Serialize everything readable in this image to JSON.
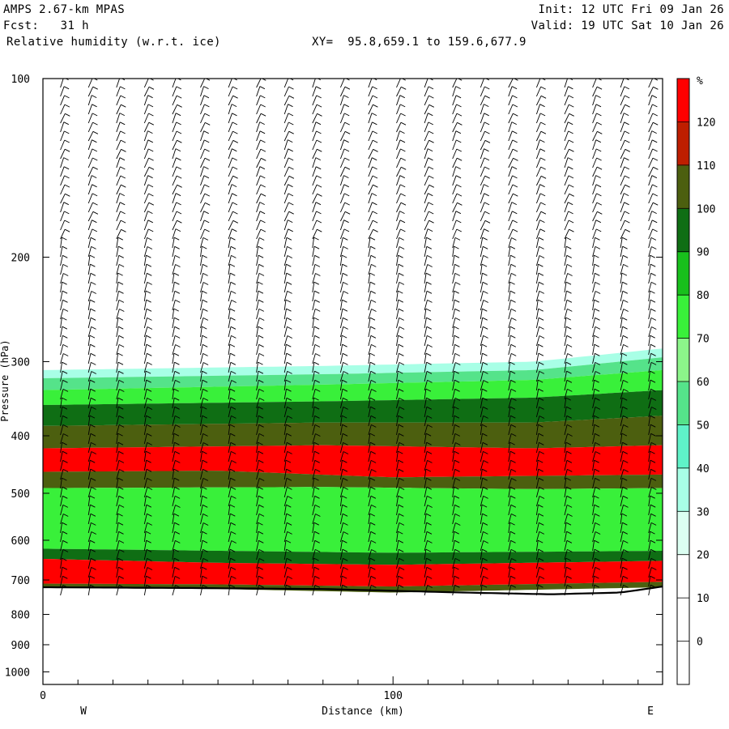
{
  "header": {
    "model": "AMPS 2.67-km MPAS",
    "init": "Init: 12 UTC Fri 09 Jan 26",
    "fcst": "Fcst:   31 h",
    "valid": "Valid: 19 UTC Sat 10 Jan 26",
    "field": "Relative humidity (w.r.t. ice)",
    "xy": "XY=  95.8,659.1 to 159.6,677.9"
  },
  "chart_data": {
    "type": "heatmap",
    "title": "Relative humidity (w.r.t. ice)",
    "xlabel": "Distance (km)",
    "ylabel": "Pressure (hPa)",
    "xlim": [
      0,
      177
    ],
    "ylim": [
      100,
      1050
    ],
    "y_scale": "log",
    "x_ticks": [
      0,
      100
    ],
    "y_ticks": [
      100,
      200,
      300,
      400,
      500,
      600,
      700,
      800,
      900,
      1000
    ],
    "end_labels": {
      "west": "W",
      "east": "E"
    },
    "colorbar": {
      "unit": "%",
      "levels": [
        0,
        10,
        20,
        30,
        40,
        50,
        60,
        70,
        80,
        90,
        100,
        110,
        120
      ],
      "colors": [
        "#ffffff",
        "#ffffff",
        "#ffffff",
        "#dcfff2",
        "#a8ffe6",
        "#5ff2c8",
        "#55e38a",
        "#8cf58a",
        "#39f03a",
        "#18c01c",
        "#0f6e14",
        "#4c5f0f",
        "#be1e00",
        "#ff0000"
      ]
    },
    "terrain_pressure": [
      {
        "x": 0,
        "p": 720
      },
      {
        "x": 40,
        "p": 722
      },
      {
        "x": 80,
        "p": 725
      },
      {
        "x": 120,
        "p": 735
      },
      {
        "x": 145,
        "p": 740
      },
      {
        "x": 165,
        "p": 735
      },
      {
        "x": 177,
        "p": 718
      }
    ],
    "rh_layers": [
      {
        "top": [
          [
            0,
            310
          ],
          [
            80,
            305
          ],
          [
            140,
            300
          ],
          [
            177,
            285
          ]
        ],
        "bottom": [
          [
            0,
            320
          ],
          [
            80,
            315
          ],
          [
            140,
            310
          ],
          [
            177,
            295
          ]
        ],
        "rh": 35
      },
      {
        "top": [
          [
            0,
            320
          ],
          [
            80,
            315
          ],
          [
            140,
            310
          ],
          [
            177,
            295
          ]
        ],
        "bottom": [
          [
            0,
            335
          ],
          [
            80,
            328
          ],
          [
            140,
            322
          ],
          [
            177,
            310
          ]
        ],
        "rh": 55
      },
      {
        "top": [
          [
            0,
            335
          ],
          [
            80,
            328
          ],
          [
            140,
            322
          ],
          [
            177,
            310
          ]
        ],
        "bottom": [
          [
            0,
            355
          ],
          [
            80,
            350
          ],
          [
            140,
            345
          ],
          [
            177,
            335
          ]
        ],
        "rh": 75
      },
      {
        "top": [
          [
            0,
            355
          ],
          [
            80,
            350
          ],
          [
            140,
            345
          ],
          [
            177,
            335
          ]
        ],
        "bottom": [
          [
            0,
            385
          ],
          [
            80,
            380
          ],
          [
            140,
            380
          ],
          [
            177,
            370
          ]
        ],
        "rh": 90
      },
      {
        "top": [
          [
            0,
            385
          ],
          [
            80,
            380
          ],
          [
            140,
            380
          ],
          [
            177,
            370
          ]
        ],
        "bottom": [
          [
            0,
            420
          ],
          [
            80,
            415
          ],
          [
            140,
            420
          ],
          [
            177,
            415
          ]
        ],
        "rh": 105
      },
      {
        "top": [
          [
            0,
            420
          ],
          [
            80,
            415
          ],
          [
            140,
            420
          ],
          [
            177,
            415
          ]
        ],
        "bottom": [
          [
            0,
            460
          ],
          [
            50,
            458
          ],
          [
            100,
            470
          ],
          [
            177,
            465
          ]
        ],
        "rh": 120
      },
      {
        "top": [
          [
            0,
            460
          ],
          [
            50,
            458
          ],
          [
            100,
            470
          ],
          [
            177,
            465
          ]
        ],
        "bottom": [
          [
            0,
            490
          ],
          [
            80,
            488
          ],
          [
            140,
            492
          ],
          [
            177,
            490
          ]
        ],
        "rh": 105
      },
      {
        "top": [
          [
            0,
            490
          ],
          [
            80,
            488
          ],
          [
            140,
            492
          ],
          [
            177,
            490
          ]
        ],
        "bottom": [
          [
            0,
            620
          ],
          [
            50,
            625
          ],
          [
            100,
            630
          ],
          [
            177,
            625
          ]
        ],
        "rh": 75
      },
      {
        "top": [
          [
            0,
            620
          ],
          [
            50,
            625
          ],
          [
            100,
            630
          ],
          [
            177,
            625
          ]
        ],
        "bottom": [
          [
            0,
            645
          ],
          [
            50,
            655
          ],
          [
            100,
            660
          ],
          [
            177,
            650
          ]
        ],
        "rh": 95
      },
      {
        "top": [
          [
            0,
            645
          ],
          [
            50,
            655
          ],
          [
            100,
            660
          ],
          [
            177,
            650
          ]
        ],
        "bottom": [
          [
            0,
            710
          ],
          [
            50,
            712
          ],
          [
            100,
            718
          ],
          [
            177,
            705
          ]
        ],
        "rh": 125
      },
      {
        "top": [
          [
            0,
            710
          ],
          [
            50,
            712
          ],
          [
            100,
            718
          ],
          [
            177,
            705
          ]
        ],
        "bottom": [
          [
            0,
            722
          ],
          [
            50,
            725
          ],
          [
            100,
            735
          ],
          [
            177,
            720
          ]
        ],
        "rh": 105
      }
    ],
    "wind_columns_x": [
      5,
      13,
      21,
      29,
      37,
      45,
      53,
      61,
      69,
      77,
      85,
      93,
      101,
      109,
      117,
      125,
      133,
      141,
      149,
      157,
      165,
      173
    ]
  }
}
